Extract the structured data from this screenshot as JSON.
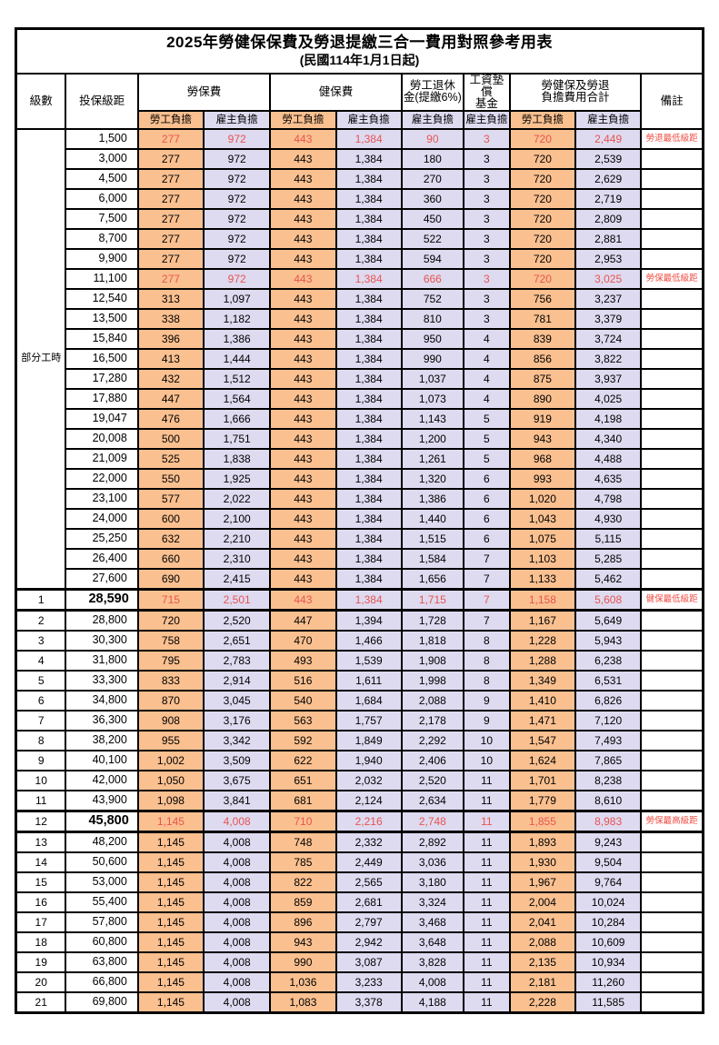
{
  "title": "2025年勞健保保費及勞退提繳三合一費用對照參考用表",
  "subtitle": "(民國114年1月1日起)",
  "columns": {
    "level": "級數",
    "bracket": "投保級距",
    "groups": [
      {
        "label": "勞保費"
      },
      {
        "label": "健保費"
      },
      {
        "label": "勞工退休\n金(提繳6%)"
      },
      {
        "label": "工資墊償\n基金"
      },
      {
        "label": "勞健保及勞退\n負擔費用合計"
      }
    ],
    "subcols": [
      {
        "label": "勞工負擔",
        "type": "employee"
      },
      {
        "label": "雇主負擔",
        "type": "employer"
      },
      {
        "label": "勞工負擔",
        "type": "employee"
      },
      {
        "label": "雇主負擔",
        "type": "employer"
      },
      {
        "label": "雇主負擔",
        "type": "employer"
      },
      {
        "label": "雇主負擔",
        "type": "employer"
      },
      {
        "label": "勞工負擔",
        "type": "employee"
      },
      {
        "label": "雇主負擔",
        "type": "employer"
      }
    ],
    "remark": "備註"
  },
  "part_time_label": "部分工時",
  "colors": {
    "employee_bg": "#fac090",
    "employer_bg": "#dedaf0",
    "highlight_red": "#e85450",
    "remark_red": "#f04b42"
  },
  "rows": [
    {
      "pt": true,
      "level": "",
      "bracket": "1,500",
      "values": [
        "277",
        "972",
        "443",
        "1,384",
        "90",
        "3",
        "720",
        "2,449"
      ],
      "remark": "勞退最低級距",
      "highlight": true,
      "emph": false
    },
    {
      "pt": true,
      "level": "",
      "bracket": "3,000",
      "values": [
        "277",
        "972",
        "443",
        "1,384",
        "180",
        "3",
        "720",
        "2,539"
      ],
      "remark": "",
      "highlight": false,
      "emph": false
    },
    {
      "pt": true,
      "level": "",
      "bracket": "4,500",
      "values": [
        "277",
        "972",
        "443",
        "1,384",
        "270",
        "3",
        "720",
        "2,629"
      ],
      "remark": "",
      "highlight": false,
      "emph": false
    },
    {
      "pt": true,
      "level": "",
      "bracket": "6,000",
      "values": [
        "277",
        "972",
        "443",
        "1,384",
        "360",
        "3",
        "720",
        "2,719"
      ],
      "remark": "",
      "highlight": false,
      "emph": false
    },
    {
      "pt": true,
      "level": "",
      "bracket": "7,500",
      "values": [
        "277",
        "972",
        "443",
        "1,384",
        "450",
        "3",
        "720",
        "2,809"
      ],
      "remark": "",
      "highlight": false,
      "emph": false
    },
    {
      "pt": true,
      "level": "",
      "bracket": "8,700",
      "values": [
        "277",
        "972",
        "443",
        "1,384",
        "522",
        "3",
        "720",
        "2,881"
      ],
      "remark": "",
      "highlight": false,
      "emph": false
    },
    {
      "pt": true,
      "level": "",
      "bracket": "9,900",
      "values": [
        "277",
        "972",
        "443",
        "1,384",
        "594",
        "3",
        "720",
        "2,953"
      ],
      "remark": "",
      "highlight": false,
      "emph": false
    },
    {
      "pt": true,
      "level": "",
      "bracket": "11,100",
      "values": [
        "277",
        "972",
        "443",
        "1,384",
        "666",
        "3",
        "720",
        "3,025"
      ],
      "remark": "勞保最低級距",
      "highlight": true,
      "emph": false
    },
    {
      "pt": true,
      "level": "",
      "bracket": "12,540",
      "values": [
        "313",
        "1,097",
        "443",
        "1,384",
        "752",
        "3",
        "756",
        "3,237"
      ],
      "remark": "",
      "highlight": false,
      "emph": false
    },
    {
      "pt": true,
      "level": "",
      "bracket": "13,500",
      "values": [
        "338",
        "1,182",
        "443",
        "1,384",
        "810",
        "3",
        "781",
        "3,379"
      ],
      "remark": "",
      "highlight": false,
      "emph": false
    },
    {
      "pt": true,
      "level": "",
      "bracket": "15,840",
      "values": [
        "396",
        "1,386",
        "443",
        "1,384",
        "950",
        "4",
        "839",
        "3,724"
      ],
      "remark": "",
      "highlight": false,
      "emph": false
    },
    {
      "pt": true,
      "level": "",
      "bracket": "16,500",
      "values": [
        "413",
        "1,444",
        "443",
        "1,384",
        "990",
        "4",
        "856",
        "3,822"
      ],
      "remark": "",
      "highlight": false,
      "emph": false
    },
    {
      "pt": true,
      "level": "",
      "bracket": "17,280",
      "values": [
        "432",
        "1,512",
        "443",
        "1,384",
        "1,037",
        "4",
        "875",
        "3,937"
      ],
      "remark": "",
      "highlight": false,
      "emph": false
    },
    {
      "pt": true,
      "level": "",
      "bracket": "17,880",
      "values": [
        "447",
        "1,564",
        "443",
        "1,384",
        "1,073",
        "4",
        "890",
        "4,025"
      ],
      "remark": "",
      "highlight": false,
      "emph": false
    },
    {
      "pt": true,
      "level": "",
      "bracket": "19,047",
      "values": [
        "476",
        "1,666",
        "443",
        "1,384",
        "1,143",
        "5",
        "919",
        "4,198"
      ],
      "remark": "",
      "highlight": false,
      "emph": false
    },
    {
      "pt": true,
      "level": "",
      "bracket": "20,008",
      "values": [
        "500",
        "1,751",
        "443",
        "1,384",
        "1,200",
        "5",
        "943",
        "4,340"
      ],
      "remark": "",
      "highlight": false,
      "emph": false
    },
    {
      "pt": true,
      "level": "",
      "bracket": "21,009",
      "values": [
        "525",
        "1,838",
        "443",
        "1,384",
        "1,261",
        "5",
        "968",
        "4,488"
      ],
      "remark": "",
      "highlight": false,
      "emph": false
    },
    {
      "pt": true,
      "level": "",
      "bracket": "22,000",
      "values": [
        "550",
        "1,925",
        "443",
        "1,384",
        "1,320",
        "6",
        "993",
        "4,635"
      ],
      "remark": "",
      "highlight": false,
      "emph": false
    },
    {
      "pt": true,
      "level": "",
      "bracket": "23,100",
      "values": [
        "577",
        "2,022",
        "443",
        "1,384",
        "1,386",
        "6",
        "1,020",
        "4,798"
      ],
      "remark": "",
      "highlight": false,
      "emph": false
    },
    {
      "pt": true,
      "level": "",
      "bracket": "24,000",
      "values": [
        "600",
        "2,100",
        "443",
        "1,384",
        "1,440",
        "6",
        "1,043",
        "4,930"
      ],
      "remark": "",
      "highlight": false,
      "emph": false
    },
    {
      "pt": true,
      "level": "",
      "bracket": "25,250",
      "values": [
        "632",
        "2,210",
        "443",
        "1,384",
        "1,515",
        "6",
        "1,075",
        "5,115"
      ],
      "remark": "",
      "highlight": false,
      "emph": false
    },
    {
      "pt": true,
      "level": "",
      "bracket": "26,400",
      "values": [
        "660",
        "2,310",
        "443",
        "1,384",
        "1,584",
        "7",
        "1,103",
        "5,285"
      ],
      "remark": "",
      "highlight": false,
      "emph": false
    },
    {
      "pt": true,
      "level": "",
      "bracket": "27,600",
      "values": [
        "690",
        "2,415",
        "443",
        "1,384",
        "1,656",
        "7",
        "1,133",
        "5,462"
      ],
      "remark": "",
      "highlight": false,
      "emph": false
    },
    {
      "pt": false,
      "level": "1",
      "bracket": "28,590",
      "values": [
        "715",
        "2,501",
        "443",
        "1,384",
        "1,715",
        "7",
        "1,158",
        "5,608"
      ],
      "remark": "健保最低級距",
      "highlight": true,
      "emph": true
    },
    {
      "pt": false,
      "level": "2",
      "bracket": "28,800",
      "values": [
        "720",
        "2,520",
        "447",
        "1,394",
        "1,728",
        "7",
        "1,167",
        "5,649"
      ],
      "remark": "",
      "highlight": false,
      "emph": false
    },
    {
      "pt": false,
      "level": "3",
      "bracket": "30,300",
      "values": [
        "758",
        "2,651",
        "470",
        "1,466",
        "1,818",
        "8",
        "1,228",
        "5,943"
      ],
      "remark": "",
      "highlight": false,
      "emph": false
    },
    {
      "pt": false,
      "level": "4",
      "bracket": "31,800",
      "values": [
        "795",
        "2,783",
        "493",
        "1,539",
        "1,908",
        "8",
        "1,288",
        "6,238"
      ],
      "remark": "",
      "highlight": false,
      "emph": false
    },
    {
      "pt": false,
      "level": "5",
      "bracket": "33,300",
      "values": [
        "833",
        "2,914",
        "516",
        "1,611",
        "1,998",
        "8",
        "1,349",
        "6,531"
      ],
      "remark": "",
      "highlight": false,
      "emph": false
    },
    {
      "pt": false,
      "level": "6",
      "bracket": "34,800",
      "values": [
        "870",
        "3,045",
        "540",
        "1,684",
        "2,088",
        "9",
        "1,410",
        "6,826"
      ],
      "remark": "",
      "highlight": false,
      "emph": false
    },
    {
      "pt": false,
      "level": "7",
      "bracket": "36,300",
      "values": [
        "908",
        "3,176",
        "563",
        "1,757",
        "2,178",
        "9",
        "1,471",
        "7,120"
      ],
      "remark": "",
      "highlight": false,
      "emph": false
    },
    {
      "pt": false,
      "level": "8",
      "bracket": "38,200",
      "values": [
        "955",
        "3,342",
        "592",
        "1,849",
        "2,292",
        "10",
        "1,547",
        "7,493"
      ],
      "remark": "",
      "highlight": false,
      "emph": false
    },
    {
      "pt": false,
      "level": "9",
      "bracket": "40,100",
      "values": [
        "1,002",
        "3,509",
        "622",
        "1,940",
        "2,406",
        "10",
        "1,624",
        "7,865"
      ],
      "remark": "",
      "highlight": false,
      "emph": false
    },
    {
      "pt": false,
      "level": "10",
      "bracket": "42,000",
      "values": [
        "1,050",
        "3,675",
        "651",
        "2,032",
        "2,520",
        "11",
        "1,701",
        "8,238"
      ],
      "remark": "",
      "highlight": false,
      "emph": false
    },
    {
      "pt": false,
      "level": "11",
      "bracket": "43,900",
      "values": [
        "1,098",
        "3,841",
        "681",
        "2,124",
        "2,634",
        "11",
        "1,779",
        "8,610"
      ],
      "remark": "",
      "highlight": false,
      "emph": false
    },
    {
      "pt": false,
      "level": "12",
      "bracket": "45,800",
      "values": [
        "1,145",
        "4,008",
        "710",
        "2,216",
        "2,748",
        "11",
        "1,855",
        "8,983"
      ],
      "remark": "勞保最高級距",
      "highlight": true,
      "emph": true
    },
    {
      "pt": false,
      "level": "13",
      "bracket": "48,200",
      "values": [
        "1,145",
        "4,008",
        "748",
        "2,332",
        "2,892",
        "11",
        "1,893",
        "9,243"
      ],
      "remark": "",
      "highlight": false,
      "emph": false
    },
    {
      "pt": false,
      "level": "14",
      "bracket": "50,600",
      "values": [
        "1,145",
        "4,008",
        "785",
        "2,449",
        "3,036",
        "11",
        "1,930",
        "9,504"
      ],
      "remark": "",
      "highlight": false,
      "emph": false
    },
    {
      "pt": false,
      "level": "15",
      "bracket": "53,000",
      "values": [
        "1,145",
        "4,008",
        "822",
        "2,565",
        "3,180",
        "11",
        "1,967",
        "9,764"
      ],
      "remark": "",
      "highlight": false,
      "emph": false
    },
    {
      "pt": false,
      "level": "16",
      "bracket": "55,400",
      "values": [
        "1,145",
        "4,008",
        "859",
        "2,681",
        "3,324",
        "11",
        "2,004",
        "10,024"
      ],
      "remark": "",
      "highlight": false,
      "emph": false
    },
    {
      "pt": false,
      "level": "17",
      "bracket": "57,800",
      "values": [
        "1,145",
        "4,008",
        "896",
        "2,797",
        "3,468",
        "11",
        "2,041",
        "10,284"
      ],
      "remark": "",
      "highlight": false,
      "emph": false
    },
    {
      "pt": false,
      "level": "18",
      "bracket": "60,800",
      "values": [
        "1,145",
        "4,008",
        "943",
        "2,942",
        "3,648",
        "11",
        "2,088",
        "10,609"
      ],
      "remark": "",
      "highlight": false,
      "emph": false
    },
    {
      "pt": false,
      "level": "19",
      "bracket": "63,800",
      "values": [
        "1,145",
        "4,008",
        "990",
        "3,087",
        "3,828",
        "11",
        "2,135",
        "10,934"
      ],
      "remark": "",
      "highlight": false,
      "emph": false
    },
    {
      "pt": false,
      "level": "20",
      "bracket": "66,800",
      "values": [
        "1,145",
        "4,008",
        "1,036",
        "3,233",
        "4,008",
        "11",
        "2,181",
        "11,260"
      ],
      "remark": "",
      "highlight": false,
      "emph": false
    },
    {
      "pt": false,
      "level": "21",
      "bracket": "69,800",
      "values": [
        "1,145",
        "4,008",
        "1,083",
        "3,378",
        "4,188",
        "11",
        "2,228",
        "11,585"
      ],
      "remark": "",
      "highlight": false,
      "emph": false
    }
  ]
}
